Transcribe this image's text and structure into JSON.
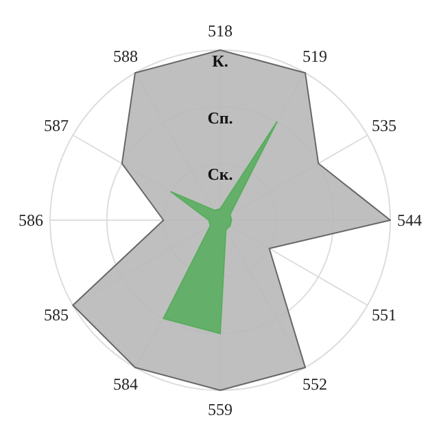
{
  "chart_data": {
    "type": "radar",
    "categories": [
      "518",
      "519",
      "535",
      "544",
      "551",
      "552",
      "559",
      "584",
      "585",
      "586",
      "587",
      "588"
    ],
    "ylim": [
      0,
      3
    ],
    "yticks": [
      {
        "value": 1,
        "label": "Ск."
      },
      {
        "value": 2,
        "label": "Сп."
      },
      {
        "value": 3,
        "label": "К."
      }
    ],
    "grid": true,
    "series": [
      {
        "color": "#b8b8b8",
        "values": [
          3,
          3,
          2,
          3,
          1,
          3,
          3,
          3,
          3,
          1,
          2,
          3
        ]
      },
      {
        "color": "#5aad5f",
        "values": [
          0.2,
          2,
          0.2,
          0.2,
          0.2,
          0.2,
          2,
          2,
          0.2,
          0.2,
          1,
          0.2
        ]
      }
    ]
  }
}
